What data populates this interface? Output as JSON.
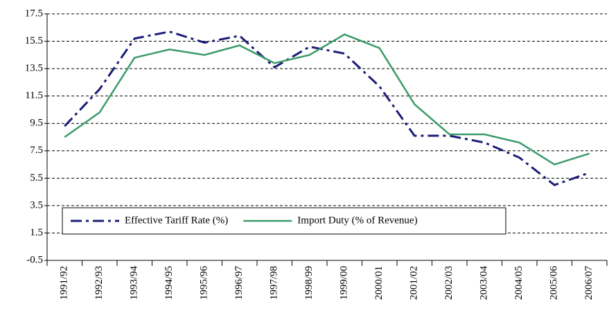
{
  "chart_data": {
    "type": "line",
    "categories": [
      "1991/92",
      "1992/93",
      "1993/94",
      "1994/95",
      "1995/96",
      "1996/97",
      "1997/98",
      "1998/99",
      "1999/00",
      "2000/01",
      "2001/02",
      "2002/03",
      "2003/04",
      "2004/05",
      "2005/06",
      "2006/07"
    ],
    "series": [
      {
        "name": "Effective Tariff Rate (%)",
        "color": "#1c1c78",
        "style": "dashdot",
        "values": [
          9.3,
          12.0,
          15.7,
          16.2,
          15.4,
          15.9,
          13.6,
          15.1,
          14.6,
          12.2,
          8.6,
          8.6,
          8.1,
          7.0,
          5.0,
          5.9
        ]
      },
      {
        "name": "Import Duty (% of Revenue)",
        "color": "#3a9a6a",
        "style": "solid",
        "values": [
          8.5,
          10.3,
          14.3,
          14.9,
          14.5,
          15.2,
          13.9,
          14.5,
          16.0,
          15.0,
          10.9,
          8.7,
          8.7,
          8.1,
          6.5,
          7.3
        ]
      }
    ],
    "ylim": [
      -0.5,
      17.5
    ],
    "yticks": [
      -0.5,
      1.5,
      3.5,
      5.5,
      7.5,
      9.5,
      11.5,
      13.5,
      15.5,
      17.5
    ],
    "grid": true,
    "legend": "lower center"
  }
}
